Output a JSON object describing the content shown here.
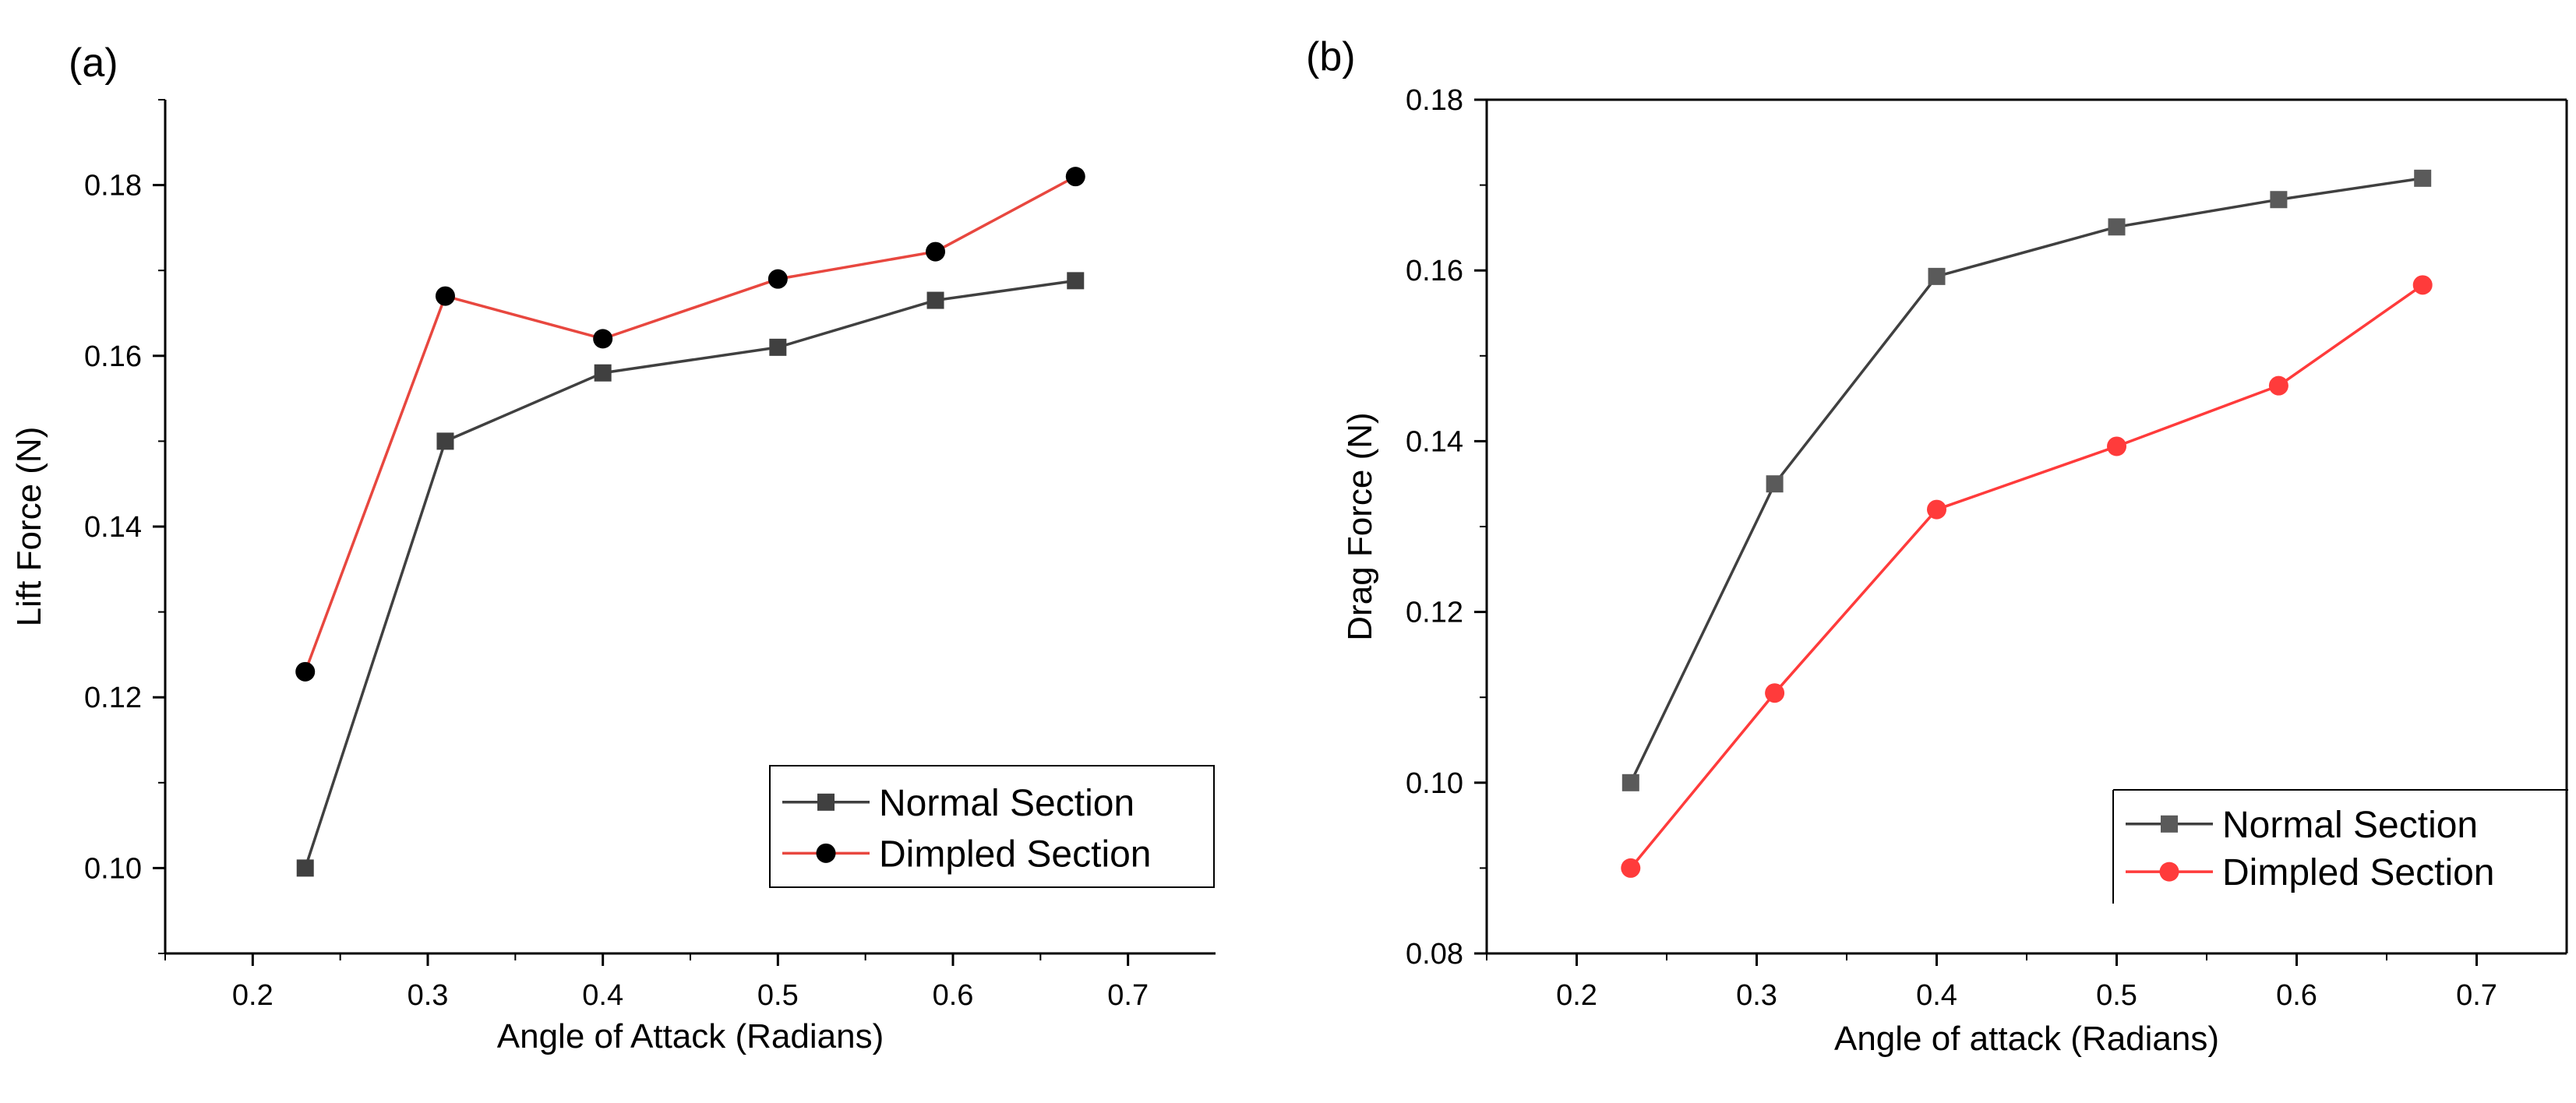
{
  "chart_data": [
    {
      "type": "line",
      "panel_label": "(a)",
      "xlabel": "Angle of Attack (Radians)",
      "ylabel": "Lift Force (N)",
      "xlim": [
        0.15,
        0.75
      ],
      "ylim": [
        0.09,
        0.19
      ],
      "xticks": [
        0.2,
        0.3,
        0.4,
        0.5,
        0.6,
        0.7
      ],
      "xtick_labels": [
        "0.2",
        "0.3",
        "0.4",
        "0.5",
        "0.6",
        "0.7"
      ],
      "yticks": [
        0.1,
        0.12,
        0.14,
        0.16,
        0.18
      ],
      "ytick_labels": [
        "0.10",
        "0.12",
        "0.14",
        "0.16",
        "0.18"
      ],
      "axes_style": "left-bottom",
      "grid": false,
      "legend_position": "bottom-right",
      "legend_frame": "full",
      "x": [
        0.23,
        0.31,
        0.4,
        0.5,
        0.59,
        0.67
      ],
      "series": [
        {
          "name": "Normal Section",
          "color": "#404040",
          "marker": "square",
          "values": [
            0.1,
            0.15,
            0.158,
            0.161,
            0.1665,
            0.1688
          ]
        },
        {
          "name": "Dimpled Section",
          "color": "#e8473f",
          "marker_color": "#000000",
          "marker": "circle",
          "values": [
            0.123,
            0.167,
            0.162,
            0.169,
            0.1722,
            0.181
          ]
        }
      ]
    },
    {
      "type": "line",
      "panel_label": "(b)",
      "xlabel": "Angle of attack (Radians)",
      "ylabel": "Drag Force (N)",
      "xlim": [
        0.15,
        0.75
      ],
      "ylim": [
        0.08,
        0.18
      ],
      "xticks": [
        0.2,
        0.3,
        0.4,
        0.5,
        0.6,
        0.7
      ],
      "xtick_labels": [
        "0.2",
        "0.3",
        "0.4",
        "0.5",
        "0.6",
        "0.7"
      ],
      "yticks": [
        0.08,
        0.1,
        0.12,
        0.14,
        0.16,
        0.18
      ],
      "ytick_labels": [
        "0.08",
        "0.10",
        "0.12",
        "0.14",
        "0.16",
        "0.18"
      ],
      "axes_style": "box",
      "grid": false,
      "legend_position": "bottom-right",
      "legend_frame": "left-top",
      "x": [
        0.23,
        0.31,
        0.4,
        0.5,
        0.59,
        0.67
      ],
      "series": [
        {
          "name": "Normal Section",
          "color": "#404040",
          "marker_color": "#5a5a5a",
          "marker": "square",
          "values": [
            0.1,
            0.135,
            0.1593,
            0.1651,
            0.1683,
            0.1708
          ]
        },
        {
          "name": "Dimpled Section",
          "color": "#ff3b3b",
          "marker_color": "#ff3b3b",
          "marker": "circle",
          "values": [
            0.09,
            0.1105,
            0.132,
            0.1394,
            0.1465,
            0.1583
          ]
        }
      ]
    }
  ]
}
